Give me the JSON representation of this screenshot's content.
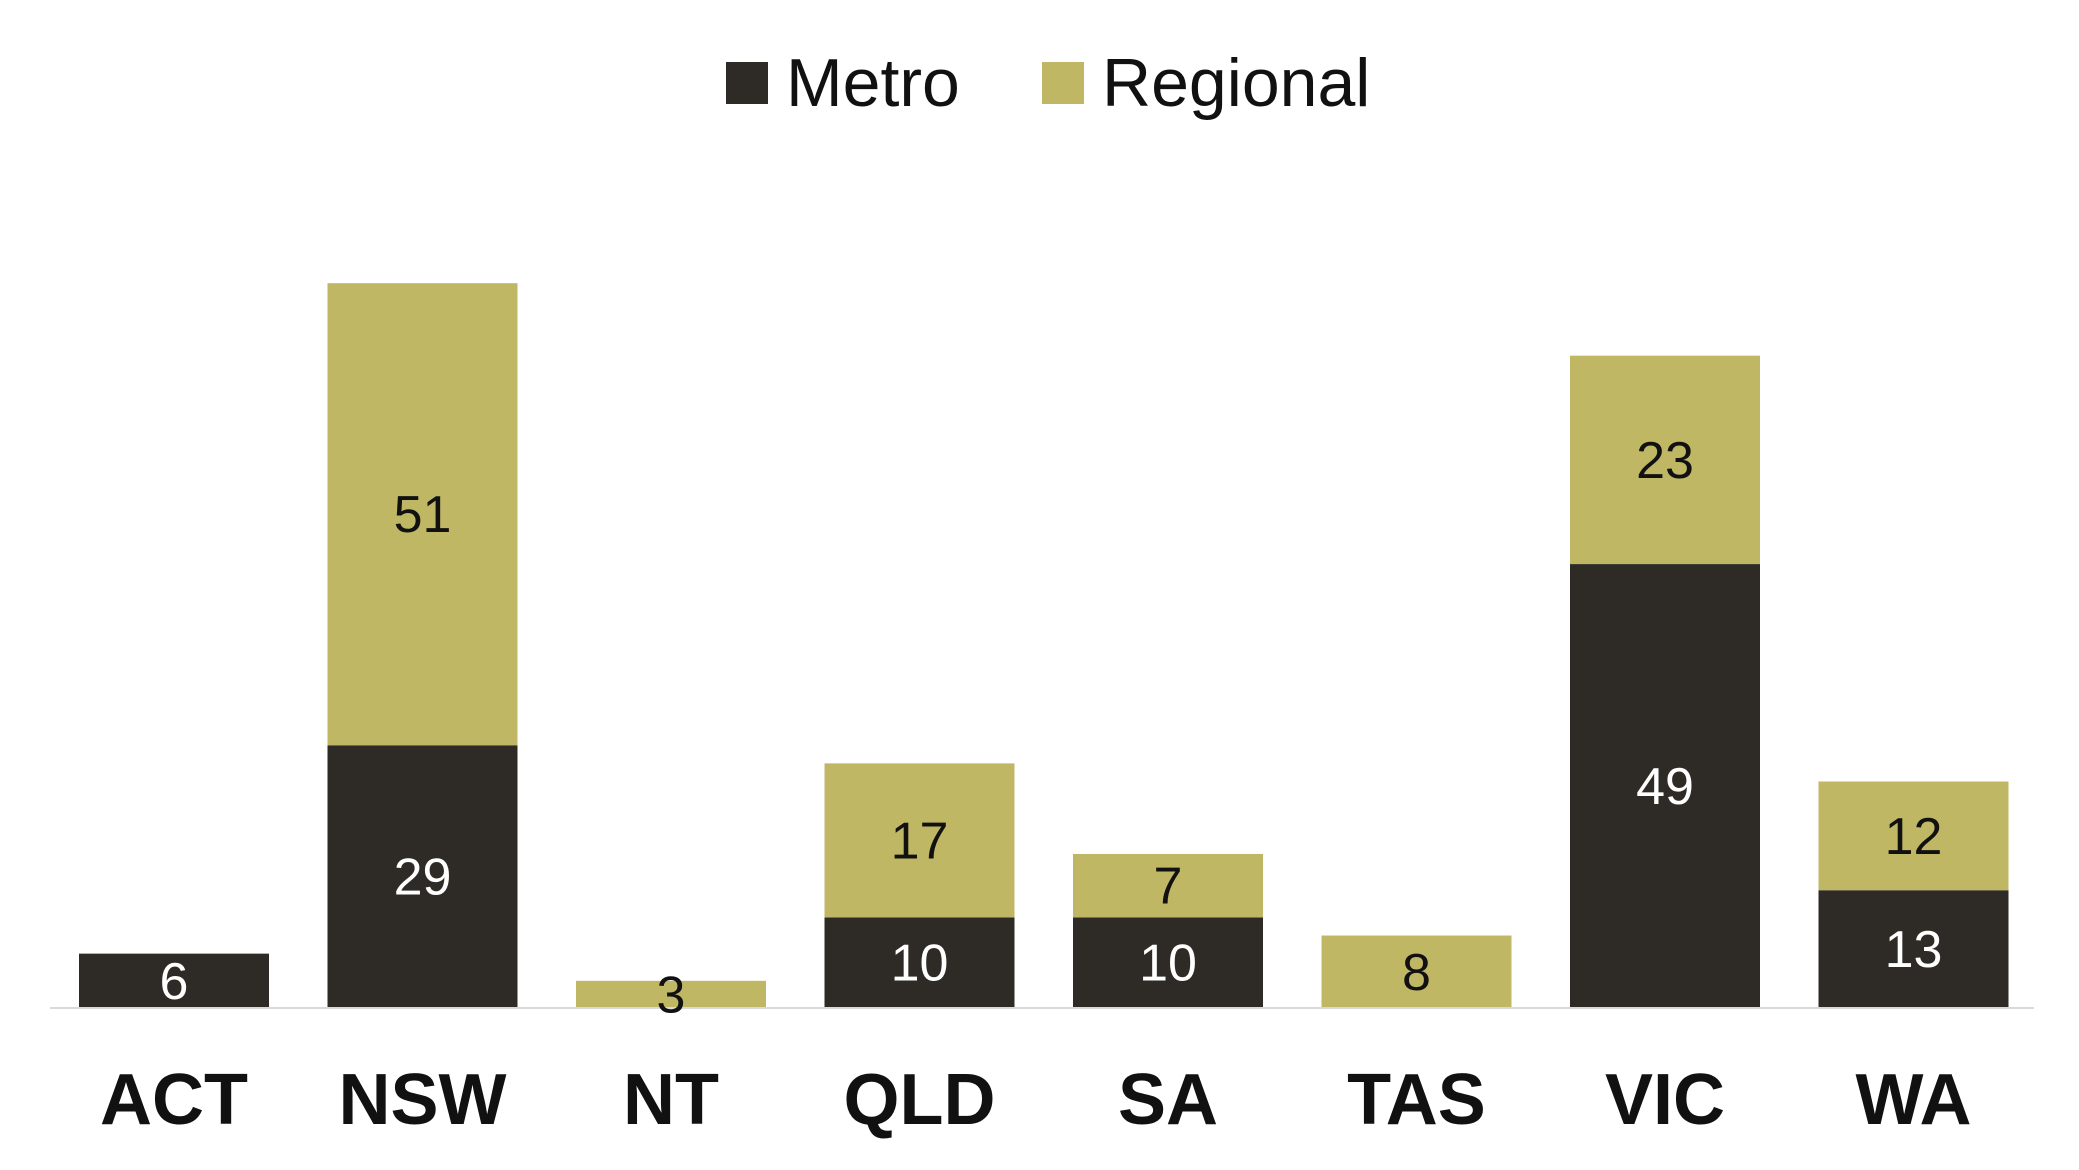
{
  "chart_data": {
    "type": "bar",
    "stacked": true,
    "categories": [
      "ACT",
      "NSW",
      "NT",
      "QLD",
      "SA",
      "TAS",
      "VIC",
      "WA"
    ],
    "series": [
      {
        "name": "Metro",
        "color": "#2e2b26",
        "label_color": "#ffffff",
        "values": [
          6,
          29,
          0,
          10,
          10,
          0,
          49,
          13
        ]
      },
      {
        "name": "Regional",
        "color": "#c0b764",
        "label_color": "#111111",
        "values": [
          0,
          51,
          3,
          17,
          7,
          8,
          23,
          12
        ]
      }
    ],
    "legend": "top-center",
    "grid": false,
    "ylim": [
      0,
      80
    ],
    "axis_color": "#d9d9d9"
  }
}
